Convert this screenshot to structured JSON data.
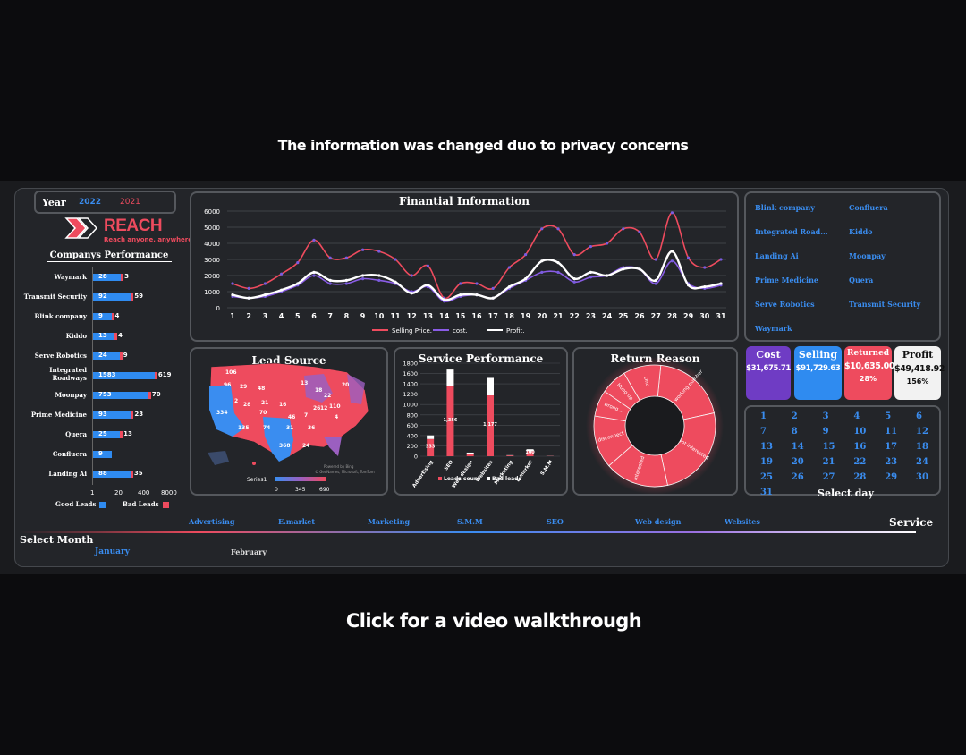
{
  "notice": "The information was changed duo to privacy concerns",
  "walkthrough": "Click for a video walkthrough",
  "year": {
    "label": "Year",
    "options": [
      "2022",
      "2021"
    ]
  },
  "logo": {
    "name": "REACH",
    "tagline": "Reach anyone, anywhere"
  },
  "companies_performance": {
    "title": "Companys Performance",
    "rows": [
      {
        "name": "Waymark",
        "good": 28,
        "bad": 3
      },
      {
        "name": "Transmit Security",
        "good": 92,
        "bad": 59
      },
      {
        "name": "Blink company",
        "good": 9,
        "bad": 4
      },
      {
        "name": "Kiddo",
        "good": 13,
        "bad": 4
      },
      {
        "name": "Serve Robotics",
        "good": 24,
        "bad": 9
      },
      {
        "name": "Integrated Roadways",
        "good": 1583,
        "bad": 619
      },
      {
        "name": "Moonpay",
        "good": 753,
        "bad": 70
      },
      {
        "name": "Prime Medicine",
        "good": 93,
        "bad": 23
      },
      {
        "name": "Quera",
        "good": 25,
        "bad": 13
      },
      {
        "name": "Confluera",
        "good": 9,
        "bad": null
      },
      {
        "name": "Landing Ai",
        "good": 88,
        "bad": 35
      }
    ],
    "ticks": [
      "1",
      "20",
      "400",
      "8000"
    ],
    "legend_good": "Good Leads",
    "legend_bad": "Bad Leads",
    "colors": {
      "good": "#2f8bf0",
      "bad": "#ee4b5e"
    }
  },
  "financial": {
    "title": "Finantial Information",
    "legend": [
      "Selling Price.",
      "cost.",
      "Profit."
    ]
  },
  "lead_source": {
    "title": "Lead Source",
    "series_label": "Series1",
    "scale": [
      "0",
      "345",
      "690"
    ],
    "credit": "Powered by Bing",
    "credit2": "© GeoNames, Microsoft, TomTom"
  },
  "service_performance": {
    "title": "Service Performance",
    "legend_leads": "Leads count",
    "legend_bad": "Bad leads"
  },
  "return_reason": {
    "title": "Return Reason",
    "labels": [
      "not a working number",
      "Not interested",
      "interested",
      "disconnect",
      "wrong...",
      "Hung up",
      "Dnc"
    ]
  },
  "company_list": [
    "Blink company",
    "Confluera",
    "Integrated Road...",
    "Kiddo",
    "Landing Ai",
    "Moonpay",
    "Prime Medicine",
    "Quera",
    "Serve Robotics",
    "Transmit Security",
    "Waymark"
  ],
  "kpis": [
    {
      "label": "Cost",
      "value": "$31,675.71",
      "pct": "",
      "bg": "#6f3cc4",
      "color": "#ffffff"
    },
    {
      "label": "Selling",
      "value": "$91,729.63",
      "pct": "",
      "bg": "#2f8bf0",
      "color": "#ffffff"
    },
    {
      "label": "Returned",
      "value": "$10,635.00",
      "pct": "28%",
      "bg": "#ee4b5e",
      "color": "#ffffff"
    },
    {
      "label": "Profit",
      "value": "$49,418.92",
      "pct": "156%",
      "bg": "#f2f2f2",
      "color": "#111111"
    }
  ],
  "select_day": {
    "title": "Select day",
    "days": [
      "1",
      "2",
      "3",
      "4",
      "5",
      "6",
      "7",
      "8",
      "9",
      "10",
      "11",
      "12",
      "13",
      "14",
      "15",
      "16",
      "17",
      "18",
      "19",
      "20",
      "21",
      "22",
      "23",
      "24",
      "25",
      "26",
      "27",
      "28",
      "29",
      "30",
      "31"
    ]
  },
  "services": [
    "Advertising",
    "E.market",
    "Marketing",
    "S.M.M",
    "SEO",
    "Web design",
    "Websites"
  ],
  "service_title": "Service",
  "select_month": {
    "title": "Select Month",
    "months": [
      "January",
      "February"
    ]
  },
  "chart_data": [
    {
      "type": "line",
      "title": "Finantial Information",
      "x": [
        1,
        2,
        3,
        4,
        5,
        6,
        7,
        8,
        9,
        10,
        11,
        12,
        13,
        14,
        15,
        16,
        17,
        18,
        19,
        20,
        21,
        22,
        23,
        24,
        25,
        26,
        27,
        28,
        29,
        30,
        31
      ],
      "ylim": [
        0,
        6000
      ],
      "yticks": [
        0,
        1000,
        2000,
        3000,
        4000,
        5000,
        6000
      ],
      "series": [
        {
          "name": "Selling Price.",
          "color": "#ee4b5e",
          "values": [
            1500,
            1200,
            1500,
            2100,
            2800,
            4200,
            3100,
            3100,
            3600,
            3500,
            3000,
            2000,
            2600,
            600,
            1500,
            1500,
            1200,
            2500,
            3300,
            4900,
            4900,
            3300,
            3800,
            4000,
            4900,
            4700,
            3000,
            5900,
            3100,
            2500,
            3000
          ]
        },
        {
          "name": "cost.",
          "color": "#8a5ce6",
          "values": [
            700,
            600,
            700,
            1000,
            1400,
            2000,
            1500,
            1500,
            1800,
            1700,
            1500,
            1000,
            1300,
            400,
            700,
            800,
            600,
            1200,
            1700,
            2200,
            2200,
            1600,
            1900,
            2000,
            2500,
            2400,
            1500,
            2900,
            1500,
            1200,
            1400
          ]
        },
        {
          "name": "Profit.",
          "color": "#ffffff",
          "values": [
            800,
            600,
            800,
            1100,
            1500,
            2200,
            1700,
            1700,
            2000,
            2000,
            1600,
            900,
            1400,
            500,
            800,
            800,
            600,
            1300,
            1800,
            2900,
            2800,
            1800,
            2200,
            2000,
            2400,
            2400,
            1700,
            3500,
            1400,
            1300,
            1500
          ]
        }
      ]
    },
    {
      "type": "bar",
      "title": "Service Performance",
      "categories": [
        "Advertising",
        "SEO",
        "Web design",
        "Websites",
        "Marketing",
        "E.market",
        "S.M.M"
      ],
      "ylim": [
        0,
        1800
      ],
      "yticks": [
        0,
        200,
        400,
        600,
        800,
        1000,
        1200,
        1400,
        1600,
        1800
      ],
      "series": [
        {
          "name": "Leads count",
          "values": [
            333,
            1356,
            50,
            1177,
            15,
            100,
            5
          ]
        },
        {
          "name": "Bad leads",
          "values": [
            70,
            321,
            20,
            338,
            5,
            35,
            2
          ]
        }
      ],
      "data_labels": [
        "333",
        "1,356",
        "",
        "1,177",
        "",
        "100",
        ""
      ]
    },
    {
      "type": "pie",
      "title": "Return Reason",
      "labels": [
        "not a working number",
        "Not interested",
        "interested",
        "disconnect",
        "wrong...",
        "Hung up",
        "Dnc"
      ],
      "values": [
        20,
        25,
        17,
        14,
        7,
        7,
        10
      ]
    },
    {
      "type": "bar",
      "title": "Companys Performance",
      "categories": [
        "Waymark",
        "Transmit Security",
        "Blink company",
        "Kiddo",
        "Serve Robotics",
        "Integrated Roadways",
        "Moonpay",
        "Prime Medicine",
        "Quera",
        "Confluera",
        "Landing Ai"
      ],
      "series": [
        {
          "name": "Good Leads",
          "values": [
            28,
            92,
            9,
            13,
            24,
            1583,
            753,
            93,
            25,
            9,
            88
          ]
        },
        {
          "name": "Bad Leads",
          "values": [
            3,
            59,
            4,
            4,
            9,
            619,
            70,
            23,
            13,
            null,
            35
          ]
        }
      ]
    }
  ]
}
